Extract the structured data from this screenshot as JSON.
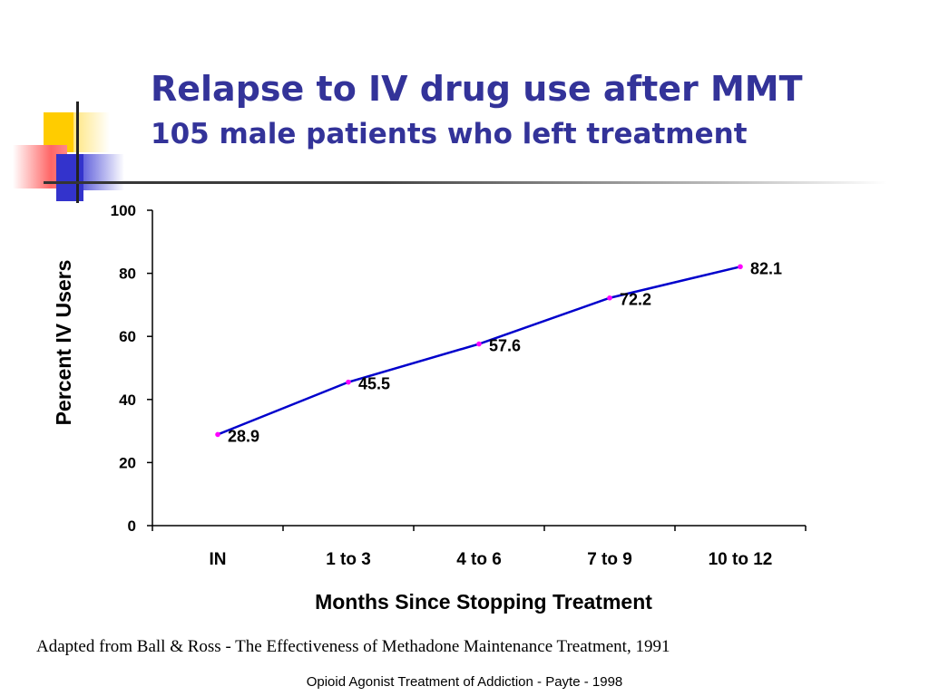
{
  "slide": {
    "title": "Relapse to IV drug use after MMT",
    "subtitle": "105 male patients who left treatment",
    "caption": "Adapted from Ball & Ross - The Effectiveness of Methadone Maintenance Treatment, 1991",
    "footer": "Opioid Agonist Treatment of Addiction  - Payte -  1998"
  },
  "colors": {
    "title": "#333399",
    "line": "#0000cc",
    "marker": "#ff00ff",
    "accent_yellow": "#ffcc00",
    "accent_red": "#ff6666",
    "accent_blue": "#3333cc"
  },
  "chart_data": {
    "type": "line",
    "categories": [
      "IN",
      "1 to 3",
      "4 to 6",
      "7 to 9",
      "10 to 12"
    ],
    "series": [
      {
        "values": [
          28.9,
          45.5,
          57.6,
          72.2,
          82.1
        ]
      }
    ],
    "data_labels": [
      "28.9",
      "45.5",
      "57.6",
      "72.2",
      "82.1"
    ],
    "xlabel": "Months Since Stopping Treatment",
    "ylabel": "Percent IV Users",
    "ylim": [
      0,
      100
    ],
    "yticks": [
      0,
      20,
      40,
      60,
      80,
      100
    ],
    "grid": false,
    "legend": "none"
  }
}
